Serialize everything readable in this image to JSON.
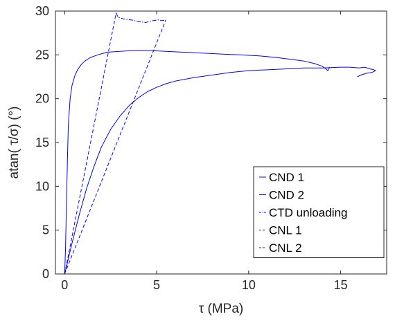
{
  "chart_data": {
    "type": "line",
    "title": "",
    "xlabel": "τ (MPa)",
    "ylabel": "atan( τ/σ) (°)",
    "xlim": [
      -0.5,
      17.5
    ],
    "ylim": [
      0,
      30
    ],
    "x_ticks": [
      0,
      5,
      10,
      15
    ],
    "y_ticks": [
      0,
      5,
      10,
      15,
      20,
      25,
      30
    ],
    "grid": false,
    "legend_position": "bottom-right",
    "series": [
      {
        "name": "CND 1",
        "style": "solid",
        "color": "#0000ff",
        "x": [
          0,
          0.05,
          0.1,
          0.15,
          0.2,
          0.3,
          0.4,
          0.55,
          0.7,
          0.9,
          1.1,
          1.4,
          1.8,
          2.3,
          3.0,
          3.8,
          4.6,
          5.5,
          6.5,
          7.5,
          8.5,
          9.5,
          10.5,
          11.5,
          12.3,
          13.0,
          13.6,
          14.0,
          14.2,
          14.3,
          14.35,
          14.4
        ],
        "y": [
          0,
          3,
          8,
          13,
          17,
          20,
          21.5,
          22.6,
          23.3,
          23.9,
          24.3,
          24.7,
          25.0,
          25.3,
          25.4,
          25.5,
          25.5,
          25.4,
          25.3,
          25.2,
          25.1,
          25.0,
          24.9,
          24.7,
          24.5,
          24.3,
          24.0,
          23.7,
          23.4,
          23.2,
          23.4,
          23.6
        ]
      },
      {
        "name": "CND 2",
        "style": "solid",
        "color": "#0000ff",
        "x": [
          0,
          0.4,
          0.8,
          1.2,
          1.6,
          2.0,
          2.5,
          3.0,
          3.5,
          4.0,
          4.5,
          5.0,
          5.5,
          6.0,
          7.0,
          8.0,
          9.0,
          10.0,
          11.0,
          12.0,
          13.0,
          14.0,
          15.0,
          15.5,
          16.0,
          16.3,
          16.6,
          16.8,
          16.9,
          16.7,
          16.4,
          16.1,
          15.9
        ],
        "y": [
          0,
          3.5,
          6.8,
          9.8,
          12.3,
          14.5,
          16.5,
          18.0,
          19.2,
          20.1,
          20.8,
          21.3,
          21.7,
          22.0,
          22.4,
          22.7,
          23.0,
          23.2,
          23.3,
          23.4,
          23.5,
          23.5,
          23.6,
          23.6,
          23.5,
          23.6,
          23.4,
          23.3,
          23.2,
          23.0,
          22.9,
          22.7,
          22.5
        ]
      },
      {
        "name": "CTD unloading",
        "style": "dashdot",
        "color": "#0000ff",
        "x": [
          2.8,
          2.9,
          3.2,
          3.6,
          4.0,
          4.4,
          4.8,
          5.1,
          5.3,
          5.5
        ],
        "y": [
          29.8,
          29.3,
          29.1,
          29.0,
          28.8,
          28.7,
          28.9,
          29.0,
          28.9,
          29.0
        ]
      },
      {
        "name": "CNL 1",
        "style": "dashed",
        "color": "#0000ff",
        "x": [
          0,
          2.8
        ],
        "y": [
          0,
          29.8
        ]
      },
      {
        "name": "CNL 2",
        "style": "dashed",
        "color": "#0000ff",
        "x": [
          0,
          5.5
        ],
        "y": [
          0,
          29.0
        ]
      }
    ]
  }
}
